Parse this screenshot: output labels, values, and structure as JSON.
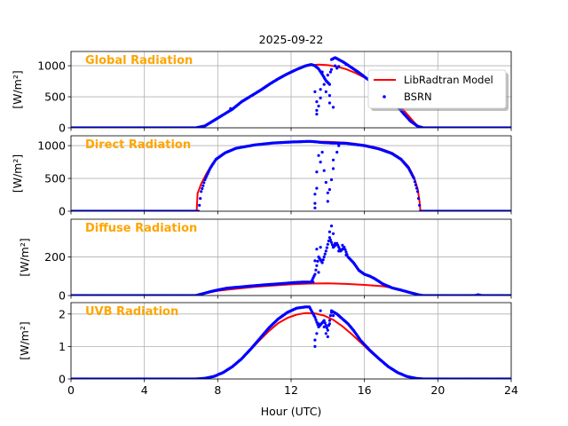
{
  "figure_title": "2025-09-22",
  "colors": {
    "model": "#ff0000",
    "obs": "#0000ff",
    "label": "#ffa500",
    "grid": "#b0b0b0"
  },
  "legend": {
    "model_label": "LibRadtran Model",
    "obs_label": "BSRN",
    "placement": "upper-right of top panel"
  },
  "chart_data": {
    "type": "line",
    "title": "2025-09-22",
    "xlabel": "Hour (UTC)",
    "xlim": [
      0,
      24
    ],
    "xticks": [
      0,
      4,
      8,
      12,
      16,
      20,
      24
    ],
    "xtick_labels": [
      "0",
      "4",
      "8",
      "12",
      "16",
      "20",
      "24"
    ],
    "grid": true,
    "panels": [
      {
        "key": "global",
        "label": "Global Radiation",
        "ylabel": "[W/m²]",
        "ylim": [
          0,
          1230
        ],
        "yticks": [
          0,
          500,
          1000
        ],
        "ytick_labels": [
          "0",
          "500",
          "1000"
        ],
        "model": [
          [
            0,
            0
          ],
          [
            6.7,
            0
          ],
          [
            7,
            5
          ],
          [
            7.5,
            60
          ],
          [
            8,
            150
          ],
          [
            8.5,
            250
          ],
          [
            9,
            350
          ],
          [
            9.5,
            450
          ],
          [
            10,
            540
          ],
          [
            10.5,
            630
          ],
          [
            11,
            730
          ],
          [
            11.5,
            820
          ],
          [
            12,
            900
          ],
          [
            12.5,
            965
          ],
          [
            13,
            1005
          ],
          [
            13.5,
            1018
          ],
          [
            14,
            1010
          ],
          [
            14.5,
            985
          ],
          [
            15,
            945
          ],
          [
            15.5,
            885
          ],
          [
            16,
            810
          ],
          [
            16.5,
            720
          ],
          [
            17,
            610
          ],
          [
            17.5,
            480
          ],
          [
            18,
            330
          ],
          [
            18.5,
            160
          ],
          [
            18.8,
            60
          ],
          [
            19,
            10
          ],
          [
            19.2,
            0
          ],
          [
            24,
            0
          ]
        ],
        "obs": [
          [
            0,
            0
          ],
          [
            6.8,
            0
          ],
          [
            7.3,
            30
          ],
          [
            7.8,
            120
          ],
          [
            8.3,
            210
          ],
          [
            8.8,
            300
          ],
          [
            9.3,
            420
          ],
          [
            9.8,
            510
          ],
          [
            10.3,
            600
          ],
          [
            10.8,
            700
          ],
          [
            11.3,
            790
          ],
          [
            11.8,
            870
          ],
          [
            12.3,
            940
          ],
          [
            12.8,
            1000
          ],
          [
            13.1,
            1020
          ],
          [
            13.3,
            1000
          ],
          [
            13.5,
            950
          ],
          [
            13.7,
            860
          ],
          [
            13.9,
            760
          ],
          [
            14.1,
            700
          ],
          [
            14.2,
            1100
          ],
          [
            14.4,
            1130
          ],
          [
            14.6,
            1100
          ],
          [
            14.9,
            1050
          ],
          [
            15.3,
            970
          ],
          [
            15.7,
            890
          ],
          [
            16.1,
            800
          ],
          [
            16.5,
            715
          ],
          [
            16.9,
            610
          ],
          [
            17.3,
            500
          ],
          [
            17.7,
            380
          ],
          [
            18.1,
            240
          ],
          [
            18.5,
            110
          ],
          [
            18.9,
            25
          ],
          [
            19.2,
            0
          ],
          [
            24,
            0
          ]
        ],
        "obs_outliers": [
          [
            8.7,
            310
          ],
          [
            13.3,
            580
          ],
          [
            13.4,
            420
          ],
          [
            13.4,
            280
          ],
          [
            13.4,
            220
          ],
          [
            13.5,
            350
          ],
          [
            13.6,
            620
          ],
          [
            13.6,
            480
          ],
          [
            13.7,
            900
          ],
          [
            13.8,
            700
          ],
          [
            13.9,
            580
          ],
          [
            14.0,
            850
          ],
          [
            14.1,
            520
          ],
          [
            14.1,
            400
          ],
          [
            14.2,
            940
          ],
          [
            14.3,
            330
          ],
          [
            14.4,
            1000
          ],
          [
            14.5,
            960
          ],
          [
            14.6,
            990
          ],
          [
            15.0,
            1020
          ]
        ]
      },
      {
        "key": "direct",
        "label": "Direct Radiation",
        "ylabel": "[W/m²]",
        "ylim": [
          0,
          1150
        ],
        "yticks": [
          0,
          500,
          1000
        ],
        "ytick_labels": [
          "0",
          "500",
          "1000"
        ],
        "model": [
          [
            0,
            0
          ],
          [
            6.85,
            0
          ],
          [
            6.9,
            270
          ],
          [
            7.1,
            420
          ],
          [
            7.4,
            580
          ],
          [
            7.7,
            720
          ],
          [
            8,
            810
          ],
          [
            8.5,
            900
          ],
          [
            9,
            960
          ],
          [
            10,
            1010
          ],
          [
            11,
            1040
          ],
          [
            12,
            1055
          ],
          [
            13,
            1060
          ],
          [
            14,
            1058
          ],
          [
            15,
            1045
          ],
          [
            16,
            1010
          ],
          [
            16.8,
            960
          ],
          [
            17.5,
            890
          ],
          [
            18,
            800
          ],
          [
            18.4,
            680
          ],
          [
            18.7,
            520
          ],
          [
            18.9,
            340
          ],
          [
            19.0,
            150
          ],
          [
            19.05,
            0
          ],
          [
            24,
            0
          ]
        ],
        "obs": [
          [
            0,
            0
          ],
          [
            6.95,
            0
          ],
          [
            7.0,
            90
          ],
          [
            7.1,
            300
          ],
          [
            7.3,
            480
          ],
          [
            7.6,
            660
          ],
          [
            7.9,
            790
          ],
          [
            8.4,
            890
          ],
          [
            9,
            960
          ],
          [
            10,
            1010
          ],
          [
            11,
            1040
          ],
          [
            12,
            1055
          ],
          [
            13,
            1065
          ],
          [
            13.3,
            1060
          ],
          [
            13.6,
            1050
          ],
          [
            14.2,
            1040
          ],
          [
            15,
            1035
          ],
          [
            16,
            1000
          ],
          [
            16.8,
            950
          ],
          [
            17.5,
            880
          ],
          [
            18,
            790
          ],
          [
            18.4,
            660
          ],
          [
            18.7,
            500
          ],
          [
            18.9,
            300
          ],
          [
            19.0,
            90
          ],
          [
            19.05,
            0
          ],
          [
            24,
            0
          ]
        ],
        "obs_outliers": [
          [
            13.3,
            50
          ],
          [
            13.3,
            120
          ],
          [
            13.3,
            260
          ],
          [
            13.4,
            350
          ],
          [
            13.4,
            600
          ],
          [
            13.5,
            850
          ],
          [
            13.6,
            750
          ],
          [
            13.7,
            900
          ],
          [
            13.8,
            620
          ],
          [
            13.9,
            440
          ],
          [
            14.0,
            150
          ],
          [
            14.0,
            280
          ],
          [
            14.1,
            330
          ],
          [
            14.2,
            480
          ],
          [
            14.3,
            650
          ],
          [
            14.3,
            780
          ],
          [
            14.5,
            900
          ],
          [
            14.6,
            1000
          ]
        ]
      },
      {
        "key": "diffuse",
        "label": "Diffuse Radiation",
        "ylabel": "[W/m²]",
        "ylim": [
          0,
          395
        ],
        "yticks": [
          0,
          200
        ],
        "ytick_labels": [
          "0",
          "200"
        ],
        "model": [
          [
            0,
            0
          ],
          [
            6.8,
            0
          ],
          [
            7,
            5
          ],
          [
            7.5,
            15
          ],
          [
            8,
            25
          ],
          [
            9,
            35
          ],
          [
            10,
            45
          ],
          [
            11,
            52
          ],
          [
            12,
            58
          ],
          [
            13,
            62
          ],
          [
            14,
            63
          ],
          [
            15,
            60
          ],
          [
            16,
            55
          ],
          [
            17,
            48
          ],
          [
            17.5,
            40
          ],
          [
            18,
            30
          ],
          [
            18.5,
            15
          ],
          [
            19,
            3
          ],
          [
            19.2,
            0
          ],
          [
            24,
            0
          ]
        ],
        "obs": [
          [
            0,
            0
          ],
          [
            6.8,
            0
          ],
          [
            7.2,
            10
          ],
          [
            7.8,
            25
          ],
          [
            8.5,
            38
          ],
          [
            9.5,
            47
          ],
          [
            10.5,
            55
          ],
          [
            11.5,
            62
          ],
          [
            12.3,
            68
          ],
          [
            12.8,
            70
          ],
          [
            13.1,
            70
          ],
          [
            13.3,
            110
          ],
          [
            13.5,
            200
          ],
          [
            13.7,
            170
          ],
          [
            13.9,
            230
          ],
          [
            14.1,
            300
          ],
          [
            14.3,
            250
          ],
          [
            14.5,
            270
          ],
          [
            14.7,
            230
          ],
          [
            14.9,
            250
          ],
          [
            15.1,
            200
          ],
          [
            15.4,
            170
          ],
          [
            15.7,
            130
          ],
          [
            16.0,
            110
          ],
          [
            16.3,
            100
          ],
          [
            16.6,
            85
          ],
          [
            17.0,
            60
          ],
          [
            17.5,
            40
          ],
          [
            18,
            28
          ],
          [
            18.5,
            15
          ],
          [
            19.0,
            3
          ],
          [
            19.2,
            0
          ],
          [
            22,
            0
          ],
          [
            22.2,
            4
          ],
          [
            22.4,
            0
          ],
          [
            24,
            0
          ]
        ],
        "obs_outliers": [
          [
            13.2,
            70
          ],
          [
            13.3,
            180
          ],
          [
            13.4,
            240
          ],
          [
            13.5,
            120
          ],
          [
            13.6,
            250
          ],
          [
            14.1,
            330
          ],
          [
            14.2,
            360
          ],
          [
            14.3,
            320
          ],
          [
            14.4,
            270
          ],
          [
            14.6,
            230
          ],
          [
            14.8,
            260
          ],
          [
            15.0,
            210
          ]
        ]
      },
      {
        "key": "uvb",
        "label": "UVB Radiation",
        "ylabel": "[W/m²]",
        "ylim": [
          0,
          2.35
        ],
        "yticks": [
          0,
          1,
          2
        ],
        "ytick_labels": [
          "0",
          "1",
          "2"
        ],
        "model": [
          [
            0,
            0
          ],
          [
            6.8,
            0
          ],
          [
            7.3,
            0.02
          ],
          [
            7.8,
            0.08
          ],
          [
            8.3,
            0.2
          ],
          [
            8.8,
            0.38
          ],
          [
            9.3,
            0.62
          ],
          [
            9.8,
            0.9
          ],
          [
            10.3,
            1.2
          ],
          [
            10.8,
            1.48
          ],
          [
            11.3,
            1.72
          ],
          [
            11.8,
            1.88
          ],
          [
            12.3,
            1.98
          ],
          [
            12.8,
            2.03
          ],
          [
            13.3,
            2.02
          ],
          [
            13.8,
            1.95
          ],
          [
            14.3,
            1.82
          ],
          [
            14.8,
            1.62
          ],
          [
            15.3,
            1.38
          ],
          [
            15.8,
            1.12
          ],
          [
            16.3,
            0.85
          ],
          [
            16.8,
            0.6
          ],
          [
            17.3,
            0.38
          ],
          [
            17.8,
            0.2
          ],
          [
            18.3,
            0.08
          ],
          [
            18.8,
            0.02
          ],
          [
            19.2,
            0
          ],
          [
            24,
            0
          ]
        ],
        "obs": [
          [
            0,
            0
          ],
          [
            6.8,
            0
          ],
          [
            7.3,
            0.02
          ],
          [
            7.8,
            0.08
          ],
          [
            8.3,
            0.2
          ],
          [
            8.8,
            0.38
          ],
          [
            9.3,
            0.62
          ],
          [
            9.8,
            0.92
          ],
          [
            10.3,
            1.25
          ],
          [
            10.8,
            1.58
          ],
          [
            11.3,
            1.85
          ],
          [
            11.8,
            2.05
          ],
          [
            12.3,
            2.18
          ],
          [
            12.8,
            2.22
          ],
          [
            13.0,
            2.22
          ],
          [
            13.3,
            1.9
          ],
          [
            13.5,
            1.6
          ],
          [
            13.8,
            1.8
          ],
          [
            14.0,
            1.5
          ],
          [
            14.2,
            2.1
          ],
          [
            14.5,
            2.0
          ],
          [
            14.8,
            1.85
          ],
          [
            15.1,
            1.7
          ],
          [
            15.4,
            1.5
          ],
          [
            15.8,
            1.18
          ],
          [
            16.3,
            0.88
          ],
          [
            16.8,
            0.62
          ],
          [
            17.3,
            0.38
          ],
          [
            17.8,
            0.2
          ],
          [
            18.3,
            0.08
          ],
          [
            18.8,
            0.02
          ],
          [
            19.2,
            0
          ],
          [
            24,
            0
          ]
        ],
        "obs_outliers": [
          [
            13.3,
            1.0
          ],
          [
            13.3,
            1.2
          ],
          [
            13.4,
            1.4
          ],
          [
            13.5,
            1.7
          ],
          [
            13.6,
            2.1
          ],
          [
            13.8,
            1.6
          ],
          [
            13.9,
            1.4
          ],
          [
            14.0,
            1.3
          ],
          [
            14.1,
            1.7
          ],
          [
            14.2,
            2.05
          ],
          [
            14.3,
            1.95
          ]
        ]
      }
    ]
  }
}
